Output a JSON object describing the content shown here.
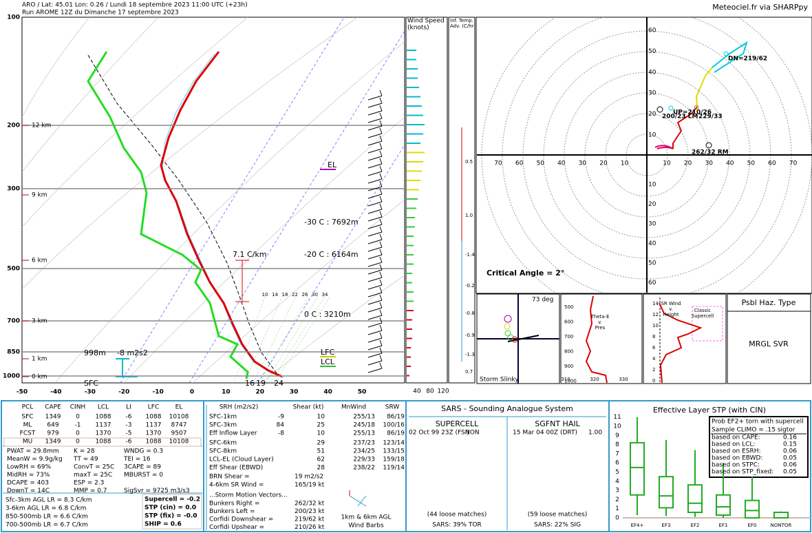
{
  "header": {
    "line1": "ARO / Lat: 45.01 Lon: 0.26 / Lundi 18 septembre 2023 11:00 UTC (+23h)",
    "line2": "Run AROME 12Z du Dimanche 17 septembre 2023",
    "right": "Meteociel.fr via SHARPpy"
  },
  "skewt": {
    "pressure_labels": [
      100,
      200,
      300,
      500,
      700,
      850,
      1000
    ],
    "height_labels": [
      "12 km",
      "9 km",
      "6 km",
      "3 km",
      "1 km",
      "0 km"
    ],
    "temp_labels": [
      -50,
      -40,
      -30,
      -20,
      -10,
      0,
      10,
      20,
      30,
      40,
      50
    ],
    "mixing_ratio_labels": [
      10,
      14,
      18,
      22,
      26,
      30,
      34
    ],
    "el": "EL",
    "iso30": "-30 C : 7692m",
    "iso20": "-20 C : 6164m",
    "iso0": "0 C : 3210m",
    "lapse": "7.1 C/km",
    "lfc": "LFC",
    "lcl": "LCL",
    "eff_top": "998m",
    "eff_srh": "-8 m2s2",
    "sfc": "SFC",
    "td_sfc": 16,
    "tw_sfc": 19,
    "t_sfc": 24
  },
  "wind_speed": {
    "title1": "Wind Speed",
    "title2": "(knots)",
    "ticks": [
      40,
      80,
      120
    ]
  },
  "inferred_temp": {
    "title1": "Inf. Temp.",
    "title2": "Adv. (C/hr)",
    "values": [
      "0.5",
      "1.0",
      "-1.4",
      "-0.2",
      "-0.8",
      "-0.9",
      "-1.3",
      "0.7"
    ]
  },
  "hodograph": {
    "rings_upper": [
      60,
      50,
      40,
      30,
      20,
      10
    ],
    "rings_lower": [
      10,
      20,
      30,
      40,
      50,
      60
    ],
    "left_axis": [
      70,
      60,
      50,
      40,
      30,
      20,
      10
    ],
    "right_axis": [
      10,
      20,
      30,
      40,
      50,
      60,
      70
    ],
    "dn": "DN=219/62",
    "up": "UP=210/26",
    "lm": "200/23 LM",
    "mean": "229/33",
    "rm": "262/32 RM",
    "critical_angle": "Critical Angle = 2°"
  },
  "slinky": {
    "angle": "73 deg",
    "title": "Storm Slinky"
  },
  "theta_e": {
    "title1": "Theta-E",
    "title2": "v.",
    "title3": "Pres",
    "pressures": [
      500,
      600,
      700,
      800,
      900,
      1000
    ],
    "temps": [
      310,
      320,
      330
    ]
  },
  "sr_wind": {
    "title1": "SR Wind",
    "title2": "v.",
    "title3": "Height",
    "heights": [
      14,
      12,
      10,
      8,
      6,
      4,
      2,
      0
    ],
    "label1": "Classic",
    "label2": "Supercell"
  },
  "hazard": {
    "title": "Psbl Haz. Type",
    "value": "MRGL SVR"
  },
  "thermo": {
    "headers": [
      "PCL",
      "CAPE",
      "CINH",
      "LCL",
      "LI",
      "LFC",
      "EL"
    ],
    "rows": [
      [
        "SFC",
        1349,
        0,
        1088,
        -6,
        1088,
        10108
      ],
      [
        "ML",
        649,
        -1,
        1137,
        -3,
        1137,
        8747
      ],
      [
        "FCST",
        979,
        0,
        1370,
        -5,
        1370,
        9507
      ],
      [
        "MU",
        1349,
        0,
        1088,
        -6,
        1088,
        10108
      ]
    ],
    "indices": [
      [
        "PWAT = 29.8mm",
        "K = 28",
        "WNDG = 0.3"
      ],
      [
        "MeanW = 9.9g/kg",
        "TT = 49",
        "TEI = 16"
      ],
      [
        "LowRH = 69%",
        "ConvT = 25C",
        "3CAPE = 89"
      ],
      [
        "MidRH = 73%",
        "maxT = 25C",
        "MBURST = 0"
      ],
      [
        "DCAPE = 403",
        "ESP = 2.3"
      ],
      [
        "DownT = 14C",
        "MMP = 0.7",
        "SigSvr = 9725 m3/s3"
      ]
    ],
    "lapse_rates": [
      "Sfc-3km AGL LR = 8.3 C/km",
      "3-6km AGL LR = 6.8 C/km",
      "850-500mb LR = 6.6 C/km",
      "700-500mb LR = 6.7 C/km"
    ],
    "params": [
      "Supercell = -0.2",
      "STP (cin) = 0.0",
      "STP (fix) = -0.0",
      "SHIP = 0.6"
    ]
  },
  "kinematic": {
    "headers": [
      "SRH (m2/s2)",
      "Shear (kt)",
      "MnWind",
      "SRW"
    ],
    "srh_rows": [
      [
        "SFC-1km",
        -9,
        10,
        "255/13",
        "86/19"
      ],
      [
        "SFC-3km",
        84,
        25,
        "245/18",
        "100/16"
      ],
      [
        "Eff Inflow Layer",
        -8,
        10,
        "255/13",
        "86/19"
      ]
    ],
    "shear_rows": [
      [
        "SFC-6km",
        29,
        "237/23",
        "123/14"
      ],
      [
        "SFC-8km",
        51,
        "234/25",
        "133/15"
      ],
      [
        "LCL-EL (Cloud Layer)",
        62,
        "229/33",
        "159/18"
      ],
      [
        "Eff Shear (EBWD)",
        28,
        "238/22",
        "119/14"
      ]
    ],
    "extras": [
      [
        "BRN Shear =",
        "19 m2/s2"
      ],
      [
        "4-6km SR Wind =",
        "165/19 kt"
      ]
    ],
    "vectors_title": "...Storm Motion Vectors...",
    "vectors": [
      [
        "Bunkers Right =",
        "262/32 kt"
      ],
      [
        "Bunkers Left =",
        "200/23 kt"
      ],
      [
        "Corfidi Downshear =",
        "219/62 kt"
      ],
      [
        "Corfidi Upshear =",
        "210/26 kt"
      ]
    ],
    "barbs1": "1km & 6km AGL",
    "barbs2": "Wind Barbs"
  },
  "sars": {
    "title": "SARS - Sounding Analogue System",
    "supercell": "SUPERCELL",
    "hail": "SGFNT HAIL",
    "sc_match": "02 Oct 99 23Z (FSI)",
    "sc_type": "NON",
    "hail_match": "15 Mar 04 00Z (DRT)",
    "hail_size": "1.00",
    "sc_loose": "(44 loose matches)",
    "sc_result": "SARS: 39% TOR",
    "hail_loose": "(59 loose matches)",
    "hail_result": "SARS: 22% SIG"
  },
  "stp": {
    "title": "Effective Layer STP (with CIN)",
    "yticks": [
      0,
      1,
      2,
      3,
      4,
      5,
      6,
      7,
      8,
      9,
      10,
      11
    ],
    "categories": [
      "EF4+",
      "EF3",
      "EF2",
      "EF1",
      "EF0",
      "NONTOR"
    ],
    "box_title1": "Prob EF2+ torn with supercell",
    "box_title2": "Sample CLIMO = .15 sigtor",
    "probs": [
      [
        "based on CAPE:",
        "0.16"
      ],
      [
        "based on LCL:",
        "0.15"
      ],
      [
        "based on ESRH:",
        "0.06"
      ],
      [
        "based on EBWD:",
        "0.05"
      ],
      [
        "based on STPC:",
        "0.06"
      ],
      [
        "based on STP_fixed:",
        "0.05"
      ]
    ]
  }
}
